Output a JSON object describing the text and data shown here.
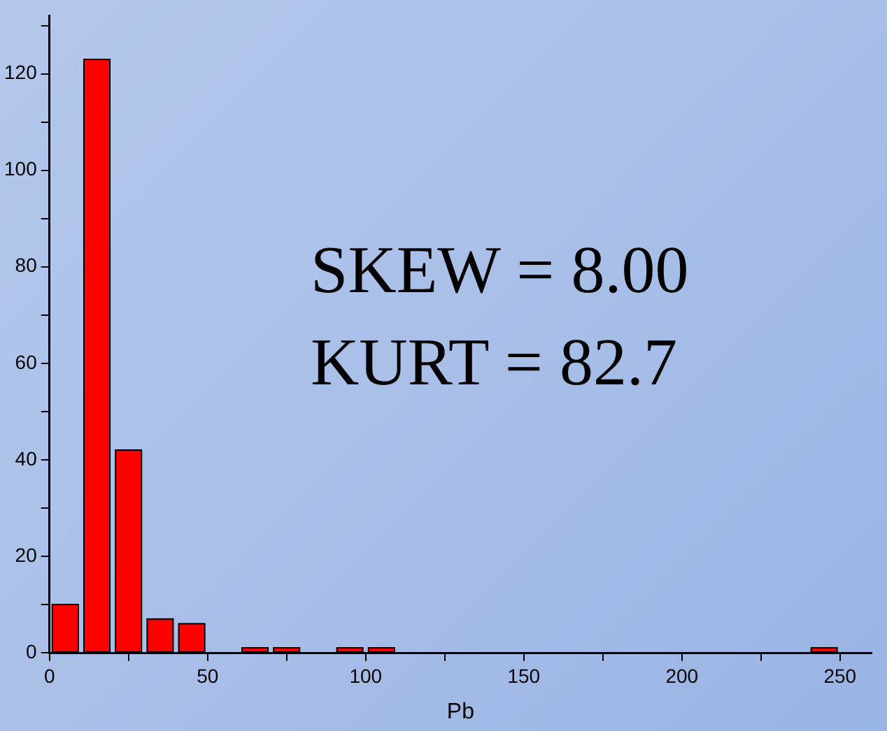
{
  "chart_data": {
    "type": "histogram",
    "xlabel": "Pb",
    "bins": [
      0,
      10,
      20,
      30,
      40,
      50,
      60,
      70,
      80,
      90,
      100,
      110,
      120,
      130,
      140,
      150,
      160,
      170,
      180,
      190,
      200,
      210,
      220,
      230,
      240,
      250
    ],
    "values": [
      10,
      123,
      42,
      7,
      6,
      0,
      1,
      1,
      0,
      1,
      1,
      0,
      0,
      0,
      0,
      0,
      0,
      0,
      0,
      0,
      0,
      0,
      0,
      0,
      1
    ],
    "color": "#ff0000",
    "xlim": [
      0,
      260
    ],
    "xticks": [
      0,
      {
        "value": 25,
        "label": null
      },
      50,
      {
        "value": 75,
        "label": null
      },
      100,
      {
        "value": 125,
        "label": null
      },
      150,
      {
        "value": 175,
        "label": null
      },
      200,
      {
        "value": 225,
        "label": null
      },
      250
    ],
    "ylim": [
      0,
      132
    ],
    "yticks": [
      0,
      {
        "value": 10,
        "label": null
      },
      20,
      {
        "value": 30,
        "label": null
      },
      40,
      {
        "value": 50,
        "label": null
      },
      60,
      {
        "value": 70,
        "label": null
      },
      80,
      {
        "value": 90,
        "label": null
      },
      100,
      {
        "value": 110,
        "label": null
      },
      120,
      {
        "value": 130,
        "label": null
      }
    ],
    "grid": false,
    "annotations": [
      "SKEW = 8.00",
      "KURT = 82.7"
    ]
  }
}
